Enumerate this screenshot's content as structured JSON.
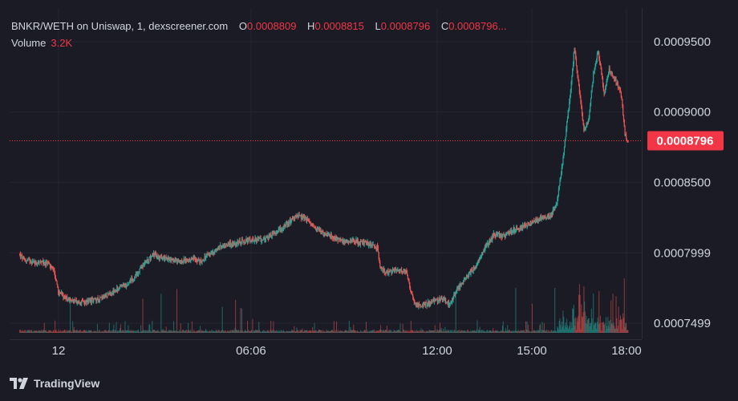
{
  "legend": {
    "pair": "BNKR/WETH on Uniswap, 1, dexscreener.com",
    "open_label": "O",
    "open_value": "0.0008809",
    "high_label": "H",
    "high_value": "0.0008815",
    "low_label": "L",
    "low_value": "0.0008796",
    "close_label": "C",
    "close_value": "0.0008796...",
    "volume_label": "Volume",
    "volume_value": "3.2K"
  },
  "brand": {
    "logo_icon": "tradingview-logo-icon",
    "name": "TradingView"
  },
  "price_tag": "0.0008796",
  "colors": {
    "background": "#1a1b25",
    "up": "#26a69a",
    "down": "#ef5350",
    "text": "#d1d4dc",
    "price_tag": "#f23645"
  },
  "chart_data": {
    "type": "candlestick",
    "title": "",
    "xlabel": "",
    "ylabel": "",
    "ylim": [
      0.0007499,
      0.00096
    ],
    "y_tick_labels": [
      "0.0009500",
      "0.0009000",
      "0.0008500",
      "0.0007999",
      "0.0007499"
    ],
    "y_tick_values": [
      0.00095,
      0.0009,
      0.00085,
      0.0007999,
      0.0007499
    ],
    "x_tick_labels": [
      "12",
      "06:06",
      "12:00",
      "15:00",
      "18:00"
    ],
    "x_tick_hours": [
      0,
      6.1,
      12,
      15,
      18
    ],
    "x_range_hours": [
      -1.25,
      18.05
    ],
    "last_price": 0.0008796,
    "grid": true,
    "close_path": [
      [
        -1.25,
        0.000799
      ],
      [
        -1.1,
        0.000795
      ],
      [
        -0.9,
        0.000794
      ],
      [
        -0.6,
        0.000793
      ],
      [
        -0.3,
        0.000792
      ],
      [
        -0.15,
        0.000787
      ],
      [
        0.0,
        0.000772
      ],
      [
        0.3,
        0.000767
      ],
      [
        0.6,
        0.000765
      ],
      [
        0.9,
        0.000765
      ],
      [
        1.2,
        0.000767
      ],
      [
        1.5,
        0.000769
      ],
      [
        1.8,
        0.000773
      ],
      [
        2.1,
        0.000777
      ],
      [
        2.4,
        0.000782
      ],
      [
        2.7,
        0.000792
      ],
      [
        3.0,
        0.000799
      ],
      [
        3.3,
        0.000796
      ],
      [
        3.6,
        0.000795
      ],
      [
        3.9,
        0.000794
      ],
      [
        4.2,
        0.000796
      ],
      [
        4.5,
        0.000794
      ],
      [
        4.8,
        0.000799
      ],
      [
        5.1,
        0.000804
      ],
      [
        5.4,
        0.000806
      ],
      [
        5.7,
        0.000807
      ],
      [
        6.0,
        0.000809
      ],
      [
        6.3,
        0.000809
      ],
      [
        6.6,
        0.00081
      ],
      [
        6.9,
        0.000815
      ],
      [
        7.2,
        0.000819
      ],
      [
        7.5,
        0.000826
      ],
      [
        7.8,
        0.000825
      ],
      [
        8.1,
        0.000818
      ],
      [
        8.4,
        0.000814
      ],
      [
        8.7,
        0.000811
      ],
      [
        9.0,
        0.000808
      ],
      [
        9.3,
        0.000809
      ],
      [
        9.6,
        0.000807
      ],
      [
        9.9,
        0.000806
      ],
      [
        10.1,
        0.000804
      ],
      [
        10.2,
        0.000789
      ],
      [
        10.4,
        0.000786
      ],
      [
        10.7,
        0.000788
      ],
      [
        11.0,
        0.000787
      ],
      [
        11.15,
        0.000774
      ],
      [
        11.3,
        0.000763
      ],
      [
        11.6,
        0.000763
      ],
      [
        11.9,
        0.000766
      ],
      [
        12.2,
        0.000767
      ],
      [
        12.4,
        0.000763
      ],
      [
        12.6,
        0.000773
      ],
      [
        12.9,
        0.000782
      ],
      [
        13.2,
        0.00079
      ],
      [
        13.5,
        0.000803
      ],
      [
        13.8,
        0.000813
      ],
      [
        14.1,
        0.000812
      ],
      [
        14.4,
        0.000816
      ],
      [
        14.7,
        0.000818
      ],
      [
        15.0,
        0.000821
      ],
      [
        15.3,
        0.000825
      ],
      [
        15.6,
        0.000826
      ],
      [
        15.8,
        0.000836
      ],
      [
        16.0,
        0.000868
      ],
      [
        16.1,
        0.00089
      ],
      [
        16.25,
        0.00092
      ],
      [
        16.35,
        0.000946
      ],
      [
        16.5,
        0.000917
      ],
      [
        16.65,
        0.000888
      ],
      [
        16.8,
        0.000894
      ],
      [
        16.95,
        0.000927
      ],
      [
        17.1,
        0.000943
      ],
      [
        17.2,
        0.000928
      ],
      [
        17.3,
        0.000912
      ],
      [
        17.45,
        0.00093
      ],
      [
        17.6,
        0.000925
      ],
      [
        17.75,
        0.000918
      ],
      [
        17.85,
        0.00091
      ],
      [
        17.95,
        0.000884
      ],
      [
        18.05,
        0.0008796
      ]
    ]
  }
}
